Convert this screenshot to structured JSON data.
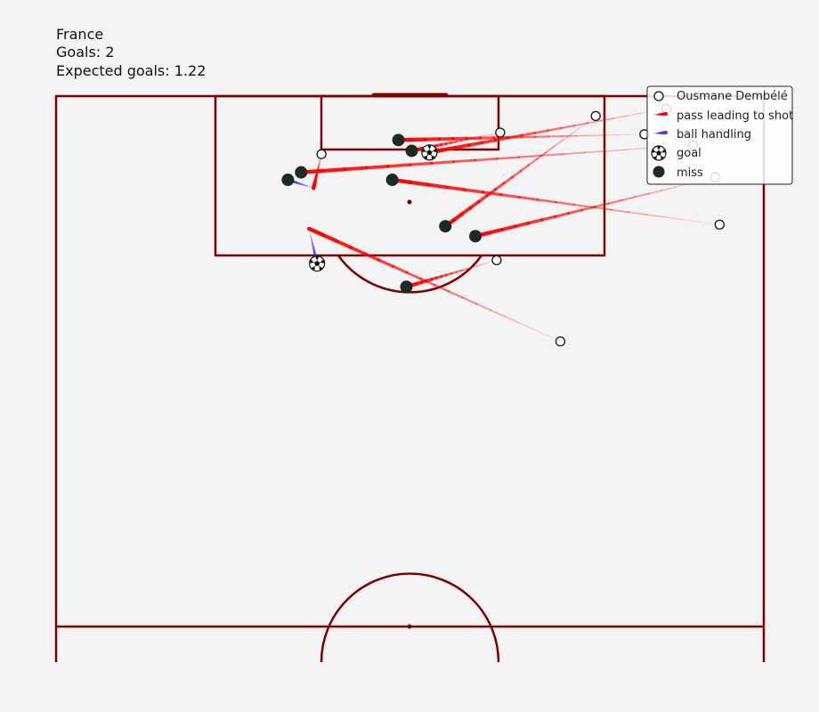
{
  "header": {
    "team": "France",
    "goals_text": "Goals: 2",
    "xg_text": "Expected goals: 1.22"
  },
  "colors": {
    "background": "#f4f4f4",
    "pitch_lines": "#7f0000",
    "pass": "#ff0000",
    "ball_handling": "#3b3bff",
    "miss_marker": "#1e2a24",
    "player_marker_edge": "#111111"
  },
  "legend": {
    "placement": "top-right",
    "items": [
      {
        "key": "player",
        "label": "Ousmane Dembélé"
      },
      {
        "key": "pass",
        "label": "pass leading to shot"
      },
      {
        "key": "handling",
        "label": "ball handling"
      },
      {
        "key": "goal",
        "label": "goal"
      },
      {
        "key": "miss",
        "label": "miss"
      }
    ]
  },
  "chart_data": {
    "type": "scatter",
    "title": "",
    "pitch": "half pitch, attacking goal at top",
    "x_range": [
      0,
      80
    ],
    "y_range": [
      0,
      64
    ],
    "shots": [
      {
        "pass_from": [
          69.0,
          62.5
        ],
        "shot": [
          42.2,
          57.2
        ],
        "handling_to": null,
        "outcome": "goal"
      },
      {
        "pass_from": [
          66.5,
          59.4
        ],
        "shot": [
          38.7,
          58.7
        ],
        "handling_to": null,
        "outcome": "miss"
      },
      {
        "pass_from": [
          72.0,
          58.1
        ],
        "shot": [
          27.7,
          54.8
        ],
        "handling_to": null,
        "outcome": "miss"
      },
      {
        "pass_from": [
          30.0,
          57.0
        ],
        "shot": [
          26.2,
          53.9
        ],
        "handling_to": [
          29.1,
          52.9
        ],
        "outcome": "miss"
      },
      {
        "pass_from": [
          50.2,
          59.6
        ],
        "shot": [
          40.2,
          57.4
        ],
        "handling_to": null,
        "outcome": "miss"
      },
      {
        "pass_from": [
          75.0,
          48.5
        ],
        "shot": [
          38.0,
          53.9
        ],
        "handling_to": null,
        "outcome": "miss"
      },
      {
        "pass_from": [
          61.0,
          61.6
        ],
        "shot": [
          44.0,
          48.3
        ],
        "handling_to": null,
        "outcome": "miss"
      },
      {
        "pass_from": [
          74.5,
          54.2
        ],
        "shot": [
          47.4,
          47.1
        ],
        "handling_to": null,
        "outcome": "miss"
      },
      {
        "pass_from": [
          57.0,
          34.4
        ],
        "shot": [
          29.5,
          43.8
        ],
        "handling_to": [
          28.6,
          48.0
        ],
        "outcome": "goal"
      },
      {
        "pass_from": [
          49.8,
          44.2
        ],
        "shot": [
          39.6,
          41.0
        ],
        "handling_to": null,
        "outcome": "miss"
      }
    ]
  }
}
